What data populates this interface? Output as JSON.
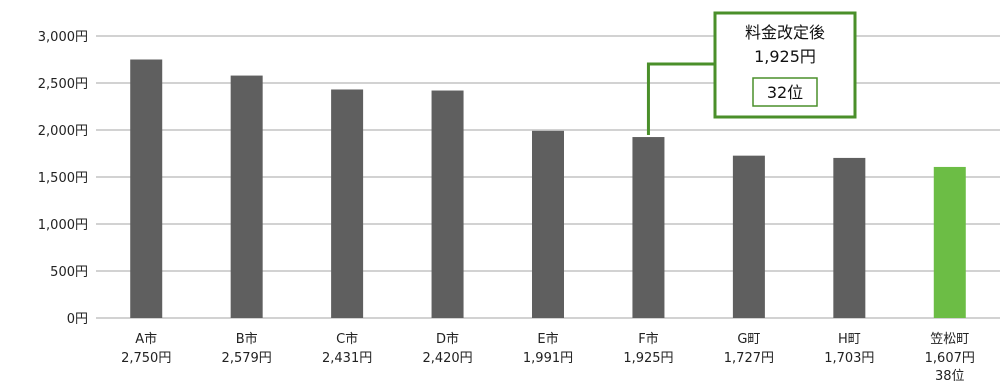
{
  "chart_data": {
    "type": "bar",
    "ylim": [
      0,
      3000
    ],
    "yticks": [
      0,
      500,
      1000,
      1500,
      2000,
      2500,
      3000
    ],
    "ytick_labels": [
      "0円",
      "500円",
      "1,000円",
      "1,500円",
      "2,000円",
      "2,500円",
      "3,000円"
    ],
    "categories": [
      "A市",
      "B市",
      "C市",
      "D市",
      "E市",
      "F市",
      "G町",
      "H町",
      "笠松町"
    ],
    "values": [
      2750,
      2579,
      2431,
      2420,
      1991,
      1925,
      1727,
      1703,
      1607
    ],
    "value_labels": [
      "2,750円",
      "2,579円",
      "2,431円",
      "2,420円",
      "1,991円",
      "1,925円",
      "1,727円",
      "1,703円",
      "1,607円"
    ],
    "rank_label": "38位",
    "highlight_index": 8,
    "grid": true,
    "colors": {
      "bar": "#5f5f5f",
      "highlight": "#6cbd45",
      "grid": "#a6a6a6",
      "callout": "#4a8f2a"
    },
    "callout": {
      "line1": "料金改定後",
      "line2": "1,925円",
      "rank": "32位",
      "target_index": 5,
      "target_value": 1925
    }
  }
}
